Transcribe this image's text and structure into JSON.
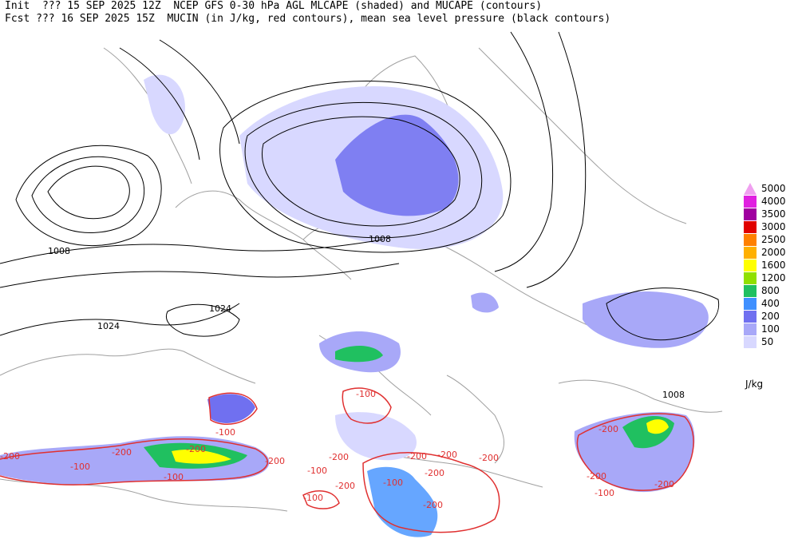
{
  "header": {
    "line1": "Init  ??? 15 SEP 2025 12Z  NCEP GFS 0-30 hPa AGL MLCAPE (shaded) and MUCAPE (contours)",
    "line2": "Fcst ??? 16 SEP 2025 15Z  MUCIN (in J/kg, red contours), mean sea level pressure (black contours)"
  },
  "legend": {
    "unit": "J/kg",
    "levels": [
      {
        "label": "5000",
        "color": "#f0a0f0"
      },
      {
        "label": "4000",
        "color": "#e020e0"
      },
      {
        "label": "3500",
        "color": "#a000a0"
      },
      {
        "label": "3000",
        "color": "#e00000"
      },
      {
        "label": "2500",
        "color": "#ff8000"
      },
      {
        "label": "2000",
        "color": "#ffb000"
      },
      {
        "label": "1600",
        "color": "#ffff00"
      },
      {
        "label": "1200",
        "color": "#90e000"
      },
      {
        "label": "800",
        "color": "#20c060"
      },
      {
        "label": "400",
        "color": "#4090ff"
      },
      {
        "label": "200",
        "color": "#7070f0"
      },
      {
        "label": "100",
        "color": "#a8a8f8"
      },
      {
        "label": "50",
        "color": "#d8d8ff"
      }
    ]
  },
  "map": {
    "isobar_labels": {
      "low_center": "1008",
      "high_center": "1024",
      "east_label": "1008"
    },
    "cin_labels": {
      "value": "-200",
      "value_alt": "-100"
    }
  }
}
